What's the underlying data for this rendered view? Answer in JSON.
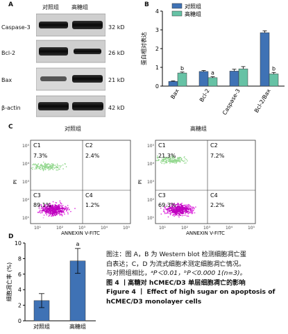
{
  "panel_labels": {
    "a": "A",
    "b": "B",
    "c": "C",
    "d": "D"
  },
  "blot": {
    "col_headers": [
      "对照组",
      "高糖组"
    ],
    "rows": [
      {
        "label": "Caspase-3",
        "kd": "32 kD"
      },
      {
        "label": "Bcl-2",
        "kd": "26 kD"
      },
      {
        "label": "Bax",
        "kd": "21 kD"
      },
      {
        "label": "β-actin",
        "kd": "42 kD"
      }
    ]
  },
  "flow": {
    "titles": [
      "对照组",
      "高糖组"
    ],
    "xlabel": "ANNEXIN V-FITC",
    "ylabel": "PI",
    "yticks": [
      "10⁵",
      "10⁴",
      "10³",
      "10²",
      "10¹"
    ],
    "xticks": [
      "10¹",
      "10²",
      "10³",
      "10⁴",
      "10⁵"
    ],
    "plots": [
      {
        "c1": "C1",
        "c1v": "7.3%",
        "c2": "C2",
        "c2v": "2.4%",
        "c3": "C3",
        "c3v": "89.1%",
        "c4": "C4",
        "c4v": "1.2%"
      },
      {
        "c1": "C1",
        "c1v": "21.3%",
        "c2": "C2",
        "c2v": "7.2%",
        "c3": "C3",
        "c3v": "69.3%",
        "c4": "C4",
        "c4v": "2.2%"
      }
    ]
  },
  "caption": {
    "line1": "图注：图 A，B 为 Western blot 检测细胞凋亡蛋",
    "line2": "白表达；C，D 为流式细胞术测定细胞凋亡情况。",
    "line3": "与对照组相比，",
    "line3b": "ᵃP＜0.01，ᵇP＜0.000 1(n=3)。",
    "fig_cn": "图 4 丨高糖对 hCMEC/D3 单层细胞凋亡的影响",
    "fig_en1": "Figure 4  丨  Effect of high sugar on apoptosis of",
    "fig_en2": "hCMEC/D3 monolayer cells"
  },
  "chart_data": [
    {
      "type": "bar",
      "panel": "B",
      "ylabel": "蛋白相对表达",
      "ylim": [
        0,
        4
      ],
      "yticks": [
        0,
        1,
        2,
        3,
        4
      ],
      "categories": [
        "Bax",
        "Bcl-2",
        "Caspase-3",
        "Bcl-2/Bax"
      ],
      "series": [
        {
          "name": "对照组",
          "color": "#3f72b5",
          "values": [
            0.25,
            0.78,
            0.8,
            2.85
          ],
          "errors": [
            0.03,
            0.05,
            0.1,
            0.1
          ]
        },
        {
          "name": "高糖组",
          "color": "#66c2a5",
          "values": [
            0.7,
            0.45,
            0.92,
            0.65
          ],
          "errors": [
            0.05,
            0.05,
            0.12,
            0.08
          ]
        }
      ],
      "annotations": [
        {
          "category": "Bax",
          "series": "高糖组",
          "text": "b"
        },
        {
          "category": "Bcl-2",
          "series": "高糖组",
          "text": "a"
        },
        {
          "category": "Bcl-2/Bax",
          "series": "高糖组",
          "text": "b"
        }
      ]
    },
    {
      "type": "bar",
      "panel": "D",
      "ylabel": "细胞凋亡率 (%)",
      "ylim": [
        0,
        10
      ],
      "yticks": [
        0,
        2,
        4,
        6,
        8,
        10
      ],
      "categories": [
        "对照组",
        "高糖组"
      ],
      "series": [
        {
          "color": "#3f72b5",
          "values": [
            2.6,
            7.7
          ],
          "errors": [
            0.9,
            1.6
          ]
        }
      ],
      "annotations": [
        {
          "category": "高糖组",
          "text": "a"
        }
      ]
    }
  ]
}
